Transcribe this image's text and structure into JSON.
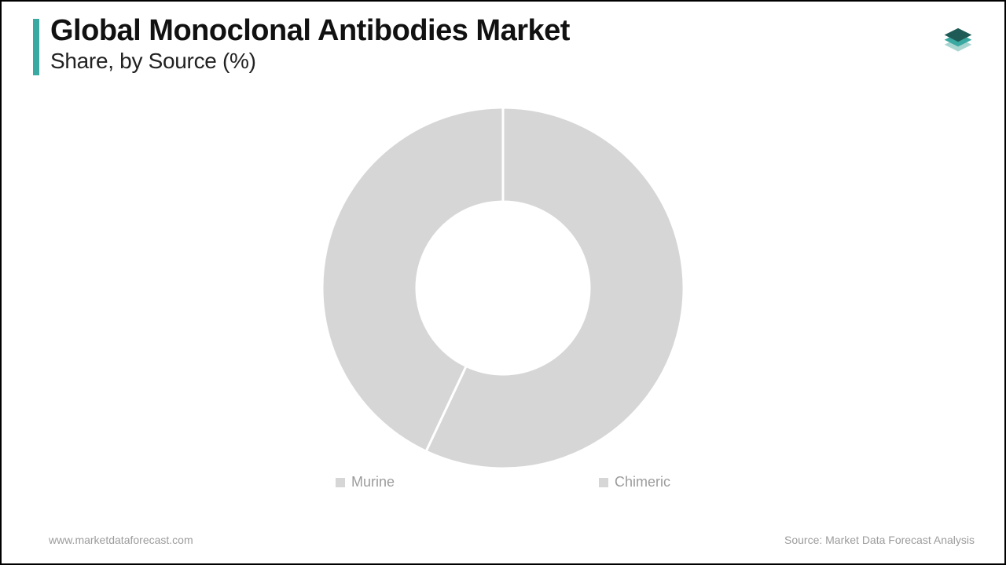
{
  "header": {
    "title": "Global Monoclonal Antibodies Market",
    "subtitle": "Share, by Source (%)",
    "accent_color": "#3aa9a1"
  },
  "logo": {
    "layer_top_color": "#1e5a56",
    "layer_mid_color": "#3aa9a1",
    "layer_bot_color": "#a9d5d1"
  },
  "chart": {
    "type": "donut",
    "outer_radius": 230,
    "inner_radius": 110,
    "background_color": "#ffffff",
    "slice_color": "#d6d6d6",
    "slice_gap_color": "#ffffff",
    "slice_gap_width": 3,
    "slices": [
      {
        "label": "Murine",
        "value": 57
      },
      {
        "label": "Chimeric",
        "value": 43
      }
    ]
  },
  "legend": {
    "swatch_color": "#d6d6d6",
    "font_size": 18,
    "text_color": "#9c9c9c",
    "items": [
      "Murine",
      "Chimeric"
    ]
  },
  "footer": {
    "left": "www.marketdataforecast.com",
    "right": "Source: Market Data Forecast Analysis",
    "text_color": "#9c9c9c",
    "font_size": 14
  }
}
